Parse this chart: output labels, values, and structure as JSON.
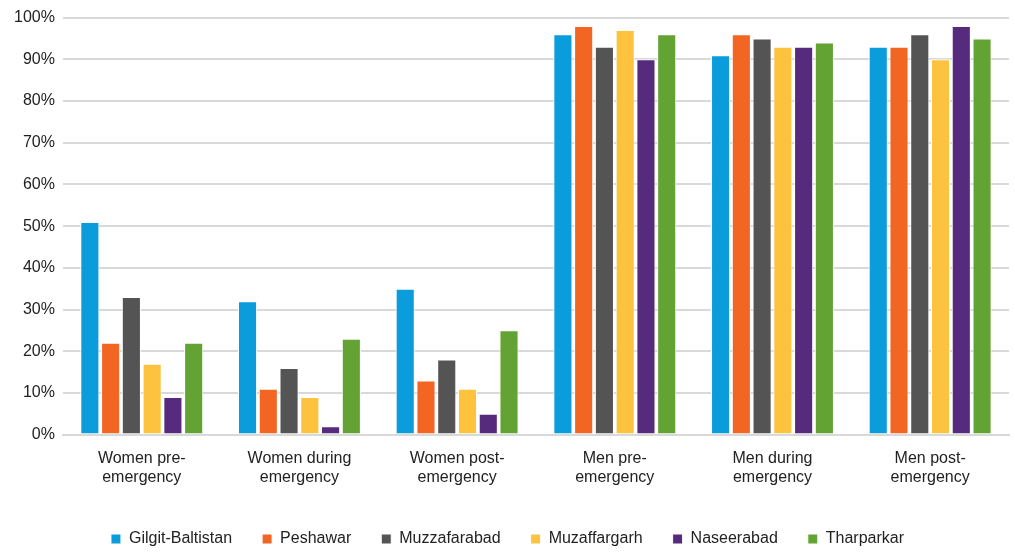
{
  "chart_data": {
    "type": "bar",
    "categories": [
      "Women pre-emergency",
      "Women during emergency",
      "Women post-emergency",
      "Men pre-emergency",
      "Men during emergency",
      "Men post-emergency"
    ],
    "series": [
      {
        "name": "Gilgit-Baltistan",
        "color": "#0b9ddb",
        "values": [
          51,
          32,
          35,
          96,
          91,
          93
        ]
      },
      {
        "name": "Peshawar",
        "color": "#f26522",
        "values": [
          22,
          11,
          13,
          98,
          96,
          93
        ]
      },
      {
        "name": "Muzzafarabad",
        "color": "#545454",
        "values": [
          33,
          16,
          18,
          93,
          95,
          96
        ]
      },
      {
        "name": "Muzaffargarh",
        "color": "#fdc23e",
        "values": [
          17,
          9,
          11,
          97,
          93,
          90
        ]
      },
      {
        "name": "Naseerabad",
        "color": "#562a7c",
        "values": [
          9,
          2,
          5,
          90,
          93,
          98
        ]
      },
      {
        "name": "Tharparkar",
        "color": "#62a333",
        "values": [
          22,
          23,
          25,
          96,
          94,
          95
        ]
      }
    ],
    "ylim": [
      0,
      100
    ],
    "yticks": [
      {
        "value": 0,
        "label": "0%"
      },
      {
        "value": 10,
        "label": "10%"
      },
      {
        "value": 20,
        "label": "20%"
      },
      {
        "value": 30,
        "label": "30%"
      },
      {
        "value": 40,
        "label": "40%"
      },
      {
        "value": 50,
        "label": "50%"
      },
      {
        "value": 60,
        "label": "60%"
      },
      {
        "value": 70,
        "label": "70%"
      },
      {
        "value": 80,
        "label": "80%"
      },
      {
        "value": 90,
        "label": "90%"
      },
      {
        "value": 100,
        "label": "100%"
      }
    ],
    "grid": "y",
    "legend": "bottom"
  }
}
